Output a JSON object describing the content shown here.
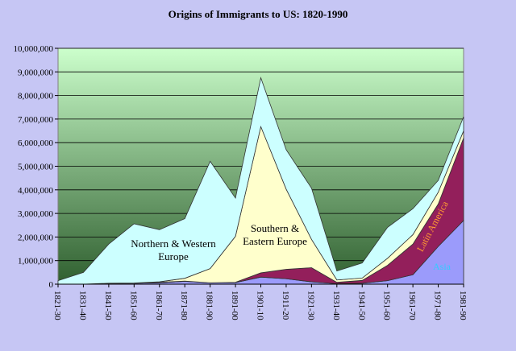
{
  "chart_data": {
    "type": "area",
    "stacked": true,
    "title": "Origins of Immigrants to US: 1820-1990",
    "xlabel": "",
    "ylabel": "",
    "categories": [
      "1821-30",
      "1831-40",
      "1841-50",
      "1851-60",
      "1861-70",
      "1871-80",
      "1881-90",
      "1891-00",
      "1901-10",
      "1911-20",
      "1921-30",
      "1931-40",
      "1941-50",
      "1951-60",
      "1961-70",
      "1971-80",
      "1981-90"
    ],
    "ylim": [
      0,
      10000000
    ],
    "yticks": [
      0,
      1000000,
      2000000,
      3000000,
      4000000,
      5000000,
      6000000,
      7000000,
      8000000,
      9000000,
      10000000
    ],
    "ytick_labels": [
      "0",
      "1,000,000",
      "2,000,000",
      "3,000,000",
      "4,000,000",
      "5,000,000",
      "6,000,000",
      "7,000,000",
      "8,000,000",
      "9,000,000",
      "10,000,000"
    ],
    "grid": true,
    "series": [
      {
        "name": "Asia",
        "color": "#9b9bfb",
        "values": [
          0,
          0,
          40000,
          40000,
          60000,
          120000,
          60000,
          70000,
          300000,
          230000,
          100000,
          20000,
          40000,
          150000,
          400000,
          1600000,
          2700000
        ]
      },
      {
        "name": "Latin America",
        "color": "#931f5b",
        "values": [
          0,
          0,
          0,
          10000,
          20000,
          10000,
          0,
          10000,
          180000,
          400000,
          600000,
          60000,
          120000,
          650000,
          1300000,
          1800000,
          3500000
        ]
      },
      {
        "name": "Southern & Eastern Europe",
        "color": "#ffffcc",
        "values": [
          0,
          0,
          0,
          0,
          20000,
          120000,
          600000,
          1950000,
          6200000,
          3400000,
          1200000,
          100000,
          100000,
          300000,
          400000,
          500000,
          300000
        ]
      },
      {
        "name": "Northern & Western Europe",
        "color": "#ccffff",
        "values": [
          150000,
          500000,
          1660000,
          2510000,
          2210000,
          2530000,
          4550000,
          1620000,
          2070000,
          1670000,
          2170000,
          380000,
          640000,
          1310000,
          1100000,
          500000,
          600000
        ]
      }
    ],
    "labels": [
      {
        "series": "Northern & Western Europe",
        "lines": [
          "Northern & Western",
          "Europe"
        ],
        "color": "#000000"
      },
      {
        "series": "Southern & Eastern Europe",
        "lines": [
          "Southern &",
          "Eastern Europe"
        ],
        "color": "#000000"
      },
      {
        "series": "Latin America",
        "lines": [
          "Latin America"
        ],
        "color": "#ff9933"
      },
      {
        "series": "Asia",
        "lines": [
          "Asia"
        ],
        "color": "#33ccff"
      }
    ],
    "colors": {
      "page_background": "#c6c6f4",
      "plot_gradient_top": "#ccffcc",
      "plot_gradient_bottom": "#2f5f2f"
    }
  }
}
